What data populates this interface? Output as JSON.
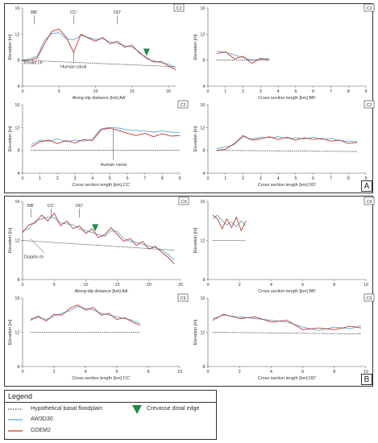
{
  "panel_sets": [
    {
      "label": "A",
      "code": "C2"
    },
    {
      "label": "B",
      "code": "C9"
    }
  ],
  "legend": {
    "title": "Legend",
    "items": [
      {
        "key": "basal",
        "label": "Hypothetical basal floodplain",
        "color": "#222222"
      },
      {
        "key": "aw3d30",
        "label": "AW3D30",
        "color": "#5fa8d3"
      },
      {
        "key": "gdem2",
        "label": "GDEM2",
        "color": "#c0392b"
      },
      {
        "key": "crevasse",
        "label": "Crevasse distal edge",
        "color": "#1e8a4a"
      }
    ]
  },
  "chart_data": [
    {
      "id": "A-AA",
      "type": "line",
      "code": "C2",
      "xlabel": "Along-dip distance [km] AA'",
      "ylabel": "Elevation [m]",
      "xlim": [
        0,
        21
      ],
      "ylim": [
        4,
        16
      ],
      "xticks": [
        0,
        5,
        10,
        15,
        20
      ],
      "yticks": [
        4,
        8,
        12,
        16
      ],
      "series": [
        {
          "name": "AW3D30",
          "x": [
            0,
            1,
            2,
            3,
            4,
            5,
            6,
            7,
            8,
            9,
            10,
            11,
            12,
            13,
            14,
            15,
            16,
            17,
            18,
            19,
            20,
            21
          ],
          "values": [
            8.0,
            8.2,
            8.6,
            11.0,
            12.1,
            12.2,
            11.3,
            11.1,
            11.8,
            11.5,
            11.2,
            11.3,
            10.8,
            10.6,
            10.2,
            10.0,
            9.3,
            8.2,
            7.9,
            7.6,
            7.4,
            6.8
          ]
        },
        {
          "name": "GDEM2",
          "x": [
            0,
            1,
            2,
            3,
            4,
            5,
            6,
            7,
            8,
            9,
            10,
            11,
            12,
            13,
            14,
            15,
            16,
            17,
            18,
            19,
            20,
            21
          ],
          "values": [
            7.9,
            8.0,
            8.3,
            10.5,
            12.4,
            12.8,
            11.5,
            9.2,
            12.0,
            11.4,
            10.9,
            11.5,
            10.5,
            10.9,
            10.0,
            10.3,
            9.1,
            8.4,
            7.7,
            7.8,
            7.1,
            6.5
          ]
        },
        {
          "name": "Hypothetical basal floodplain",
          "x": [
            0,
            21
          ],
          "values": [
            8.0,
            7.0
          ]
        }
      ],
      "annotations": [
        "BB'",
        "CC'",
        "DD'",
        "Khalid ch",
        "Human canal"
      ],
      "crevasse_distal_edge_x": 17
    },
    {
      "id": "A-BB",
      "type": "line",
      "code": "C2",
      "xlabel": "Cross section length [km] BB'",
      "ylabel": "Elevation [m]",
      "xlim": [
        0,
        9
      ],
      "ylim": [
        4,
        16
      ],
      "xticks": [
        0,
        1,
        2,
        3,
        4,
        5,
        6,
        7,
        8,
        9
      ],
      "yticks": [
        4,
        8,
        12,
        16
      ],
      "series": [
        {
          "name": "AW3D30",
          "x": [
            0.5,
            1,
            1.5,
            2,
            2.5,
            3,
            3.5
          ],
          "values": [
            9.4,
            9.2,
            8.8,
            8.4,
            8.0,
            8.1,
            8.3
          ]
        },
        {
          "name": "GDEM2",
          "x": [
            0.5,
            1,
            1.5,
            2,
            2.5,
            3,
            3.5
          ],
          "values": [
            9.0,
            9.3,
            8.2,
            8.6,
            7.5,
            8.3,
            8.0
          ]
        },
        {
          "name": "Hypothetical basal floodplain",
          "x": [
            0.5,
            3.5
          ],
          "values": [
            8.0,
            8.0
          ]
        }
      ]
    },
    {
      "id": "A-CC",
      "type": "line",
      "code": "C2",
      "xlabel": "Cross section length [km] CC'",
      "ylabel": "Elevation [m]",
      "xlim": [
        0,
        9
      ],
      "ylim": [
        4,
        16
      ],
      "xticks": [
        0,
        1,
        2,
        3,
        4,
        5,
        6,
        7,
        8,
        9
      ],
      "yticks": [
        4,
        8,
        12,
        16
      ],
      "series": [
        {
          "name": "AW3D30",
          "x": [
            0.5,
            1,
            1.5,
            2,
            2.5,
            3,
            3.5,
            4,
            4.5,
            5,
            5.5,
            6,
            6.5,
            7,
            7.5,
            8,
            8.5,
            9
          ],
          "values": [
            9.0,
            9.8,
            9.6,
            10.0,
            9.5,
            9.8,
            9.6,
            10.0,
            11.8,
            12.0,
            11.9,
            11.6,
            11.5,
            11.4,
            11.2,
            11.4,
            11.2,
            11.1
          ]
        },
        {
          "name": "GDEM2",
          "x": [
            0.5,
            1,
            1.5,
            2,
            2.5,
            3,
            3.5,
            4,
            4.5,
            5,
            5.5,
            6,
            6.5,
            7,
            7.5,
            8,
            8.5,
            9
          ],
          "values": [
            8.6,
            9.5,
            9.8,
            9.2,
            9.7,
            9.3,
            9.9,
            9.7,
            11.6,
            11.9,
            11.5,
            11.0,
            10.6,
            11.0,
            10.4,
            10.9,
            10.5,
            10.6
          ]
        },
        {
          "name": "Hypothetical basal floodplain",
          "x": [
            0.5,
            9
          ],
          "values": [
            8.0,
            8.0
          ]
        }
      ],
      "annotations": [
        "Human canal"
      ]
    },
    {
      "id": "A-DD",
      "type": "line",
      "code": "C2",
      "xlabel": "Cross section length [km] DD'",
      "ylabel": "Elevation [m]",
      "xlim": [
        0,
        9
      ],
      "ylim": [
        4,
        16
      ],
      "xticks": [
        0,
        1,
        2,
        3,
        4,
        5,
        6,
        7,
        8,
        9
      ],
      "yticks": [
        4,
        8,
        12,
        16
      ],
      "series": [
        {
          "name": "AW3D30",
          "x": [
            0.5,
            1,
            1.5,
            2,
            2.5,
            3,
            3.5,
            4,
            4.5,
            5,
            5.5,
            6,
            6.5,
            7,
            7.5,
            8,
            8.5
          ],
          "values": [
            8.3,
            8.6,
            9.0,
            10.4,
            10.0,
            10.3,
            10.2,
            10.4,
            10.1,
            10.2,
            10.0,
            10.3,
            9.9,
            10.1,
            9.7,
            9.6,
            9.5
          ]
        },
        {
          "name": "GDEM2",
          "x": [
            0.5,
            1,
            1.5,
            2,
            2.5,
            3,
            3.5,
            4,
            4.5,
            5,
            5.5,
            6,
            6.5,
            7,
            7.5,
            8,
            8.5
          ],
          "values": [
            8.0,
            8.2,
            9.2,
            10.6,
            9.8,
            10.0,
            10.4,
            9.9,
            10.3,
            9.8,
            10.2,
            9.9,
            10.1,
            9.6,
            9.8,
            9.2,
            9.4
          ]
        },
        {
          "name": "Hypothetical basal floodplain",
          "x": [
            0.5,
            8.5
          ],
          "values": [
            8.0,
            7.8
          ]
        }
      ]
    },
    {
      "id": "B-AA",
      "type": "line",
      "code": "C9",
      "xlabel": "Along-dip distance [km] AA'",
      "ylabel": "Elevation [m]",
      "xlim": [
        0,
        25
      ],
      "ylim": [
        8,
        16
      ],
      "xticks": [
        0,
        5,
        10,
        15,
        20,
        25
      ],
      "yticks": [
        8,
        12,
        16
      ],
      "series": [
        {
          "name": "AW3D30",
          "x": [
            0,
            1,
            2,
            3,
            4,
            5,
            6,
            7,
            8,
            9,
            10,
            11,
            12,
            13,
            14,
            15,
            16,
            17,
            18,
            19,
            20,
            21,
            22,
            23,
            24
          ],
          "values": [
            13.0,
            13.2,
            14.0,
            14.2,
            14.4,
            14.3,
            13.8,
            13.7,
            13.6,
            13.2,
            13.0,
            12.8,
            12.6,
            12.4,
            13.0,
            12.9,
            12.2,
            11.9,
            11.8,
            11.6,
            11.4,
            11.3,
            11.0,
            10.6,
            10.0
          ]
        },
        {
          "name": "GDEM2",
          "x": [
            0,
            1,
            2,
            3,
            4,
            5,
            6,
            7,
            8,
            9,
            10,
            11,
            12,
            13,
            14,
            15,
            16,
            17,
            18,
            19,
            20,
            21,
            22,
            23,
            24
          ],
          "values": [
            12.8,
            13.6,
            13.8,
            14.6,
            14.0,
            14.8,
            13.5,
            14.0,
            13.2,
            13.5,
            12.7,
            13.2,
            12.3,
            12.6,
            13.3,
            12.6,
            11.9,
            12.2,
            11.5,
            11.9,
            11.1,
            11.4,
            10.8,
            10.3,
            9.6
          ]
        },
        {
          "name": "Hypothetical basal floodplain",
          "x": [
            0,
            24
          ],
          "values": [
            12.0,
            11.0
          ]
        }
      ],
      "annotations": [
        "BB'",
        "CC'",
        "DD'",
        "Dujaila ch"
      ],
      "crevasse_distal_edge_x": 11.5
    },
    {
      "id": "B-BB",
      "type": "line",
      "code": "C9",
      "xlabel": "Cross section length [km] BB'",
      "ylabel": "Elevation [m]",
      "xlim": [
        0,
        10
      ],
      "ylim": [
        8,
        16
      ],
      "xticks": [
        0,
        2,
        4,
        6,
        8,
        10
      ],
      "yticks": [
        8,
        12,
        16
      ],
      "series": [
        {
          "name": "AW3D30",
          "x": [
            0.3,
            0.6,
            0.9,
            1.2,
            1.5,
            1.8,
            2.1,
            2.4
          ],
          "values": [
            14.2,
            14.6,
            14.0,
            13.6,
            13.9,
            13.4,
            14.0,
            13.5
          ]
        },
        {
          "name": "GDEM2",
          "x": [
            0.3,
            0.6,
            0.9,
            1.2,
            1.5,
            1.8,
            2.1,
            2.4
          ],
          "values": [
            14.6,
            14.2,
            13.2,
            14.2,
            13.3,
            14.4,
            13.0,
            14.0
          ]
        },
        {
          "name": "Hypothetical basal floodplain",
          "x": [
            0.3,
            2.4
          ],
          "values": [
            12.0,
            12.0
          ]
        }
      ]
    },
    {
      "id": "B-CC",
      "type": "line",
      "code": "C9",
      "xlabel": "Cross section length [km] CC'",
      "ylabel": "Elevation [m]",
      "xlim": [
        0,
        10
      ],
      "ylim": [
        8,
        16
      ],
      "xticks": [
        0,
        2,
        4,
        6,
        8,
        10
      ],
      "yticks": [
        8,
        12,
        16
      ],
      "series": [
        {
          "name": "AW3D30",
          "x": [
            0.5,
            1,
            1.5,
            2,
            2.5,
            3,
            3.5,
            4,
            4.5,
            5,
            5.5,
            6,
            6.5,
            7,
            7.5
          ],
          "values": [
            13.6,
            13.7,
            13.5,
            13.9,
            14.2,
            14.5,
            15.0,
            14.8,
            14.6,
            14.2,
            14.0,
            13.8,
            13.6,
            13.4,
            13.0
          ]
        },
        {
          "name": "GDEM2",
          "x": [
            0.5,
            1,
            1.5,
            2,
            2.5,
            3,
            3.5,
            4,
            4.5,
            5,
            5.5,
            6,
            6.5,
            7,
            7.5
          ],
          "values": [
            13.4,
            13.9,
            13.3,
            14.1,
            14.0,
            14.8,
            15.2,
            14.6,
            14.9,
            14.0,
            14.2,
            13.5,
            13.7,
            13.2,
            12.8
          ]
        },
        {
          "name": "Hypothetical basal floodplain",
          "x": [
            0.5,
            7.5
          ],
          "values": [
            12.0,
            12.0
          ]
        }
      ]
    },
    {
      "id": "B-DD",
      "type": "line",
      "code": "C9",
      "xlabel": "Cross section length [km] DD'",
      "ylabel": "Elevation [m]",
      "xlim": [
        0,
        10
      ],
      "ylim": [
        8,
        16
      ],
      "xticks": [
        0,
        2,
        4,
        6,
        8,
        10
      ],
      "yticks": [
        8,
        12,
        16
      ],
      "series": [
        {
          "name": "AW3D30",
          "x": [
            0.3,
            1,
            2,
            3,
            4,
            5,
            6,
            7,
            8,
            9,
            9.7
          ],
          "values": [
            13.6,
            14.0,
            13.8,
            13.6,
            13.4,
            13.2,
            12.6,
            12.2,
            12.6,
            12.4,
            12.8
          ]
        },
        {
          "name": "GDEM2",
          "x": [
            0.3,
            1,
            2,
            3,
            4,
            5,
            6,
            7,
            8,
            9,
            9.7
          ],
          "values": [
            13.4,
            14.1,
            13.6,
            13.8,
            13.2,
            13.4,
            12.3,
            12.5,
            12.3,
            12.7,
            12.5
          ]
        },
        {
          "name": "Hypothetical basal floodplain",
          "x": [
            0.3,
            9.7
          ],
          "values": [
            12.0,
            11.8
          ]
        }
      ]
    }
  ]
}
